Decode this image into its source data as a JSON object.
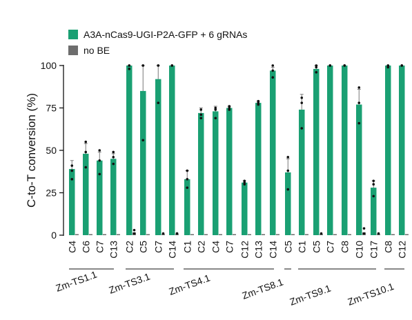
{
  "chart_data": {
    "type": "bar",
    "ylabel": "C-to-T conversion (%)",
    "ylim": [
      0,
      100
    ],
    "yticks": [
      0,
      25,
      50,
      75,
      100
    ],
    "legend": {
      "placement": "top-left",
      "entries": [
        {
          "name": "A3A-nCas9-UGI-P2A-GFP + 6 gRNAs",
          "color": "#1aa073"
        },
        {
          "name": "no  BE",
          "color": "#6d6d6d"
        }
      ]
    },
    "groups": [
      {
        "name": "Zm-TS1.1",
        "categories": [
          "C4",
          "C6",
          "C7",
          "C13"
        ]
      },
      {
        "name": "Zm-TS3.1",
        "categories": [
          "C2",
          "C5",
          "C7",
          "C14"
        ]
      },
      {
        "name": "Zm-TS4.1",
        "categories": [
          "C1",
          "C2",
          "C4",
          "C7",
          "C12",
          "C13",
          "C14"
        ]
      },
      {
        "name": "Zm-TS8.1",
        "categories": [
          "C5"
        ]
      },
      {
        "name": "Zm-TS9.1",
        "categories": [
          "C1",
          "C5",
          "C7",
          "C8",
          "C10",
          "C17"
        ]
      },
      {
        "name": "Zm-TS10.1",
        "categories": [
          "C8",
          "C12"
        ]
      }
    ],
    "series": [
      {
        "name": "A3A-nCas9-UGI-P2A-GFP + 6 gRNAs",
        "color": "#1aa073",
        "values": [
          39,
          48,
          44,
          45,
          100,
          85,
          92,
          100,
          33,
          72,
          73,
          75,
          31,
          78,
          97,
          37,
          74,
          98,
          100,
          100,
          77,
          28,
          100,
          100
        ],
        "errors": [
          5,
          6,
          5,
          3,
          0,
          15,
          8,
          0,
          5,
          3,
          3,
          1,
          1,
          1,
          2,
          8,
          9,
          2,
          0,
          0,
          9,
          4,
          0,
          0
        ],
        "points": [
          [
            38,
            33,
            41
          ],
          [
            49,
            55,
            40
          ],
          [
            44,
            50,
            36
          ],
          [
            46,
            49,
            42
          ],
          [
            100,
            98,
            100
          ],
          [
            100,
            56,
            100
          ],
          [
            100,
            78,
            100
          ],
          [
            100,
            100,
            100
          ],
          [
            38,
            28,
            33
          ],
          [
            74,
            71,
            69
          ],
          [
            75,
            74,
            69
          ],
          [
            76,
            74,
            75
          ],
          [
            31,
            32,
            30
          ],
          [
            77,
            79,
            78
          ],
          [
            100,
            93,
            97
          ],
          [
            46,
            27,
            38
          ],
          [
            78,
            63,
            81
          ],
          [
            100,
            96,
            99
          ],
          [
            100,
            100,
            100
          ],
          [
            100,
            100,
            100
          ],
          [
            87,
            66,
            78
          ],
          [
            32,
            23,
            30
          ],
          [
            100,
            99,
            100
          ],
          [
            100,
            100,
            100
          ]
        ]
      },
      {
        "name": "no  BE",
        "color": "#6d6d6d",
        "values": [
          0,
          0,
          0,
          0,
          1,
          0,
          0,
          0,
          0,
          0,
          0,
          0,
          0,
          0,
          0,
          0,
          0,
          0,
          0,
          0,
          1,
          0,
          0,
          0
        ],
        "points": [
          [],
          [],
          [],
          [],
          [
            3,
            1
          ],
          [],
          [
            1
          ],
          [
            1,
            1
          ],
          [],
          [],
          [],
          [],
          [],
          [],
          [],
          [],
          [],
          [
            1
          ],
          [],
          [],
          [
            4,
            1
          ],
          [
            1
          ],
          [],
          []
        ]
      }
    ]
  }
}
